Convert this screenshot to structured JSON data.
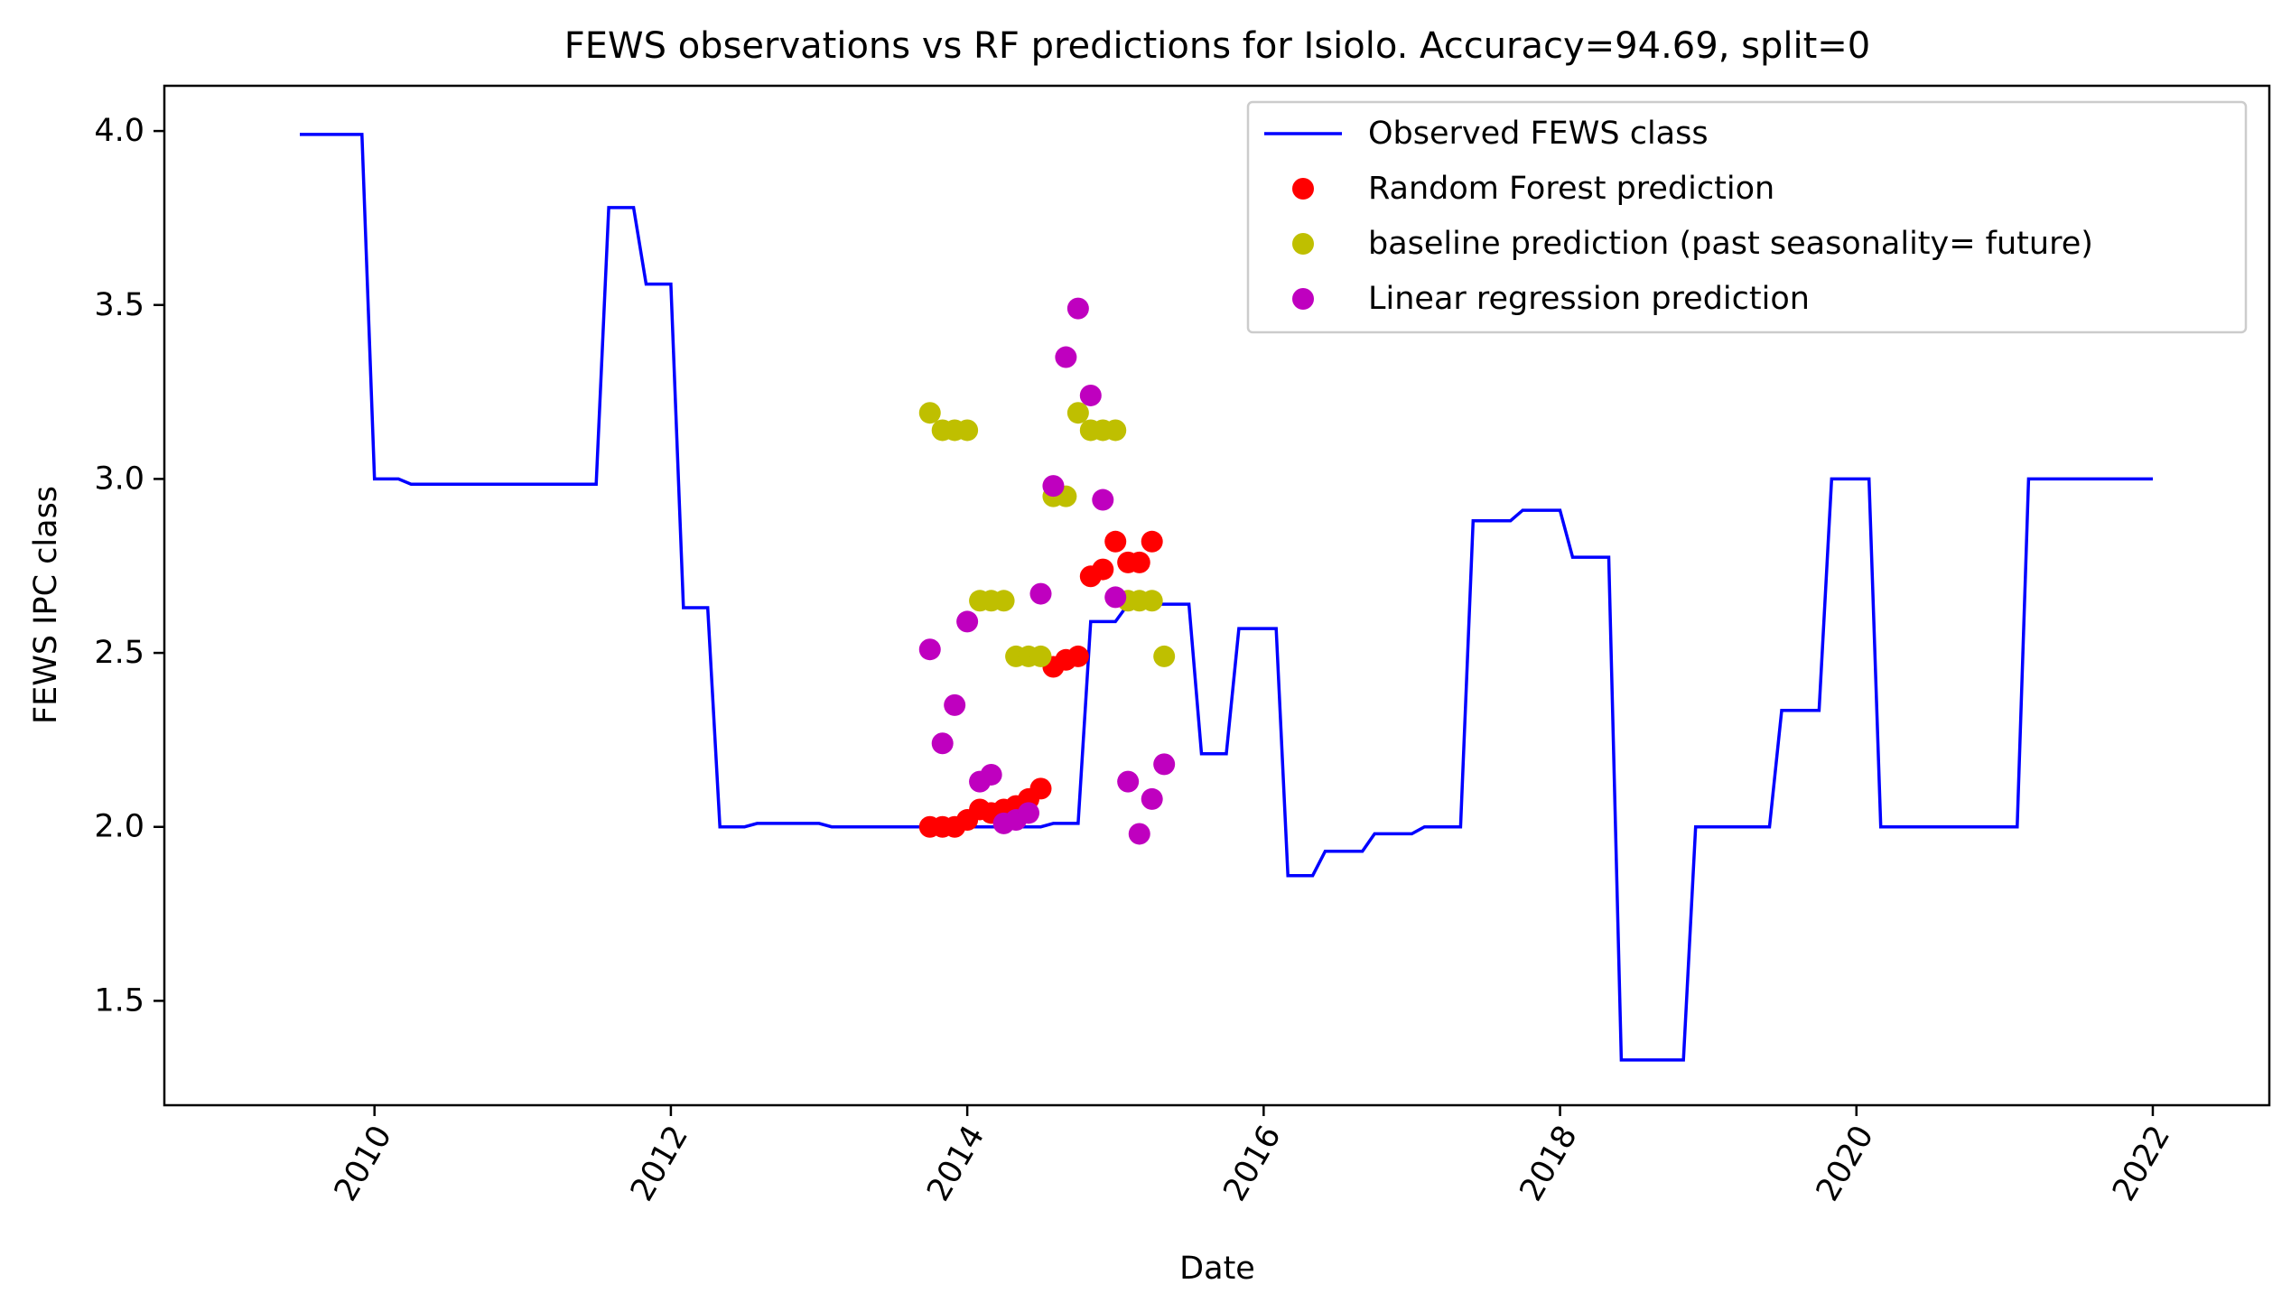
{
  "chart_data": {
    "type": "line",
    "title": "FEWS observations vs RF predictions for Isiolo. Accuracy=94.69, split=0",
    "xlabel": "Date",
    "ylabel": "FEWS IPC class",
    "xlim": [
      "2008-08-01",
      "2022-10-15"
    ],
    "ylim": [
      1.2,
      4.13
    ],
    "x_ticks": [
      "2010",
      "2012",
      "2014",
      "2016",
      "2018",
      "2020",
      "2022"
    ],
    "y_ticks": [
      "1.5",
      "2.0",
      "2.5",
      "3.0",
      "3.5",
      "4.0"
    ],
    "grid": false,
    "legend_position": "top-right",
    "series": [
      {
        "name": "Observed FEWS class",
        "kind": "line",
        "color": "#0000ff",
        "points": [
          [
            "2009-07-01",
            3.99
          ],
          [
            "2009-12-01",
            3.99
          ],
          [
            "2010-01-01",
            3.0
          ],
          [
            "2010-03-01",
            3.0
          ],
          [
            "2010-04-01",
            2.985
          ],
          [
            "2011-07-01",
            2.985
          ],
          [
            "2011-08-01",
            3.78
          ],
          [
            "2011-10-01",
            3.78
          ],
          [
            "2011-11-01",
            3.56
          ],
          [
            "2012-01-01",
            3.56
          ],
          [
            "2012-02-01",
            2.63
          ],
          [
            "2012-04-01",
            2.63
          ],
          [
            "2012-05-01",
            2.0
          ],
          [
            "2012-07-01",
            2.0
          ],
          [
            "2012-08-01",
            2.01
          ],
          [
            "2013-01-01",
            2.01
          ],
          [
            "2013-02-01",
            2.0
          ],
          [
            "2014-07-01",
            2.0
          ],
          [
            "2014-08-01",
            2.01
          ],
          [
            "2014-10-01",
            2.01
          ],
          [
            "2014-11-01",
            2.59
          ],
          [
            "2015-01-01",
            2.59
          ],
          [
            "2015-02-01",
            2.64
          ],
          [
            "2015-07-01",
            2.64
          ],
          [
            "2015-08-01",
            2.21
          ],
          [
            "2015-10-01",
            2.21
          ],
          [
            "2015-11-01",
            2.57
          ],
          [
            "2016-02-01",
            2.57
          ],
          [
            "2016-03-01",
            1.86
          ],
          [
            "2016-05-01",
            1.86
          ],
          [
            "2016-06-01",
            1.93
          ],
          [
            "2016-09-01",
            1.93
          ],
          [
            "2016-10-01",
            1.98
          ],
          [
            "2017-01-01",
            1.98
          ],
          [
            "2017-02-01",
            2.0
          ],
          [
            "2017-05-01",
            2.0
          ],
          [
            "2017-06-01",
            2.88
          ],
          [
            "2017-09-01",
            2.88
          ],
          [
            "2017-10-01",
            2.91
          ],
          [
            "2018-01-01",
            2.91
          ],
          [
            "2018-02-01",
            2.775
          ],
          [
            "2018-05-01",
            2.775
          ],
          [
            "2018-06-01",
            1.33
          ],
          [
            "2018-11-01",
            1.33
          ],
          [
            "2018-12-01",
            2.0
          ],
          [
            "2019-06-01",
            2.0
          ],
          [
            "2019-07-01",
            2.335
          ],
          [
            "2019-10-01",
            2.335
          ],
          [
            "2019-11-01",
            3.0
          ],
          [
            "2020-02-01",
            3.0
          ],
          [
            "2020-03-01",
            2.0
          ],
          [
            "2021-02-01",
            2.0
          ],
          [
            "2021-03-01",
            3.0
          ],
          [
            "2022-01-01",
            3.0
          ]
        ]
      },
      {
        "name": "Random Forest prediction",
        "kind": "scatter",
        "color": "#ff0000",
        "points": [
          [
            "2013-10-01",
            2.0
          ],
          [
            "2013-11-01",
            2.0
          ],
          [
            "2013-12-01",
            2.0
          ],
          [
            "2014-01-01",
            2.02
          ],
          [
            "2014-02-01",
            2.05
          ],
          [
            "2014-03-01",
            2.04
          ],
          [
            "2014-04-01",
            2.05
          ],
          [
            "2014-05-01",
            2.06
          ],
          [
            "2014-06-01",
            2.08
          ],
          [
            "2014-07-01",
            2.11
          ],
          [
            "2014-08-01",
            2.46
          ],
          [
            "2014-09-01",
            2.48
          ],
          [
            "2014-10-01",
            2.49
          ],
          [
            "2014-11-01",
            2.72
          ],
          [
            "2014-12-01",
            2.74
          ],
          [
            "2015-01-01",
            2.82
          ],
          [
            "2015-02-01",
            2.76
          ],
          [
            "2015-03-01",
            2.76
          ],
          [
            "2015-04-01",
            2.82
          ]
        ]
      },
      {
        "name": "baseline prediction (past seasonality= future)",
        "kind": "scatter",
        "color": "#bfbf00",
        "points": [
          [
            "2013-10-01",
            3.19
          ],
          [
            "2013-11-01",
            3.14
          ],
          [
            "2013-12-01",
            3.14
          ],
          [
            "2014-01-01",
            3.14
          ],
          [
            "2014-02-01",
            2.65
          ],
          [
            "2014-03-01",
            2.65
          ],
          [
            "2014-04-01",
            2.65
          ],
          [
            "2014-05-01",
            2.49
          ],
          [
            "2014-06-01",
            2.49
          ],
          [
            "2014-07-01",
            2.49
          ],
          [
            "2014-08-01",
            2.95
          ],
          [
            "2014-09-01",
            2.95
          ],
          [
            "2014-10-01",
            3.19
          ],
          [
            "2014-11-01",
            3.14
          ],
          [
            "2014-12-01",
            3.14
          ],
          [
            "2015-01-01",
            3.14
          ],
          [
            "2015-02-01",
            2.65
          ],
          [
            "2015-03-01",
            2.65
          ],
          [
            "2015-04-01",
            2.65
          ],
          [
            "2015-05-01",
            2.49
          ]
        ]
      },
      {
        "name": "Linear regression prediction",
        "kind": "scatter",
        "color": "#bf00bf",
        "points": [
          [
            "2013-10-01",
            2.51
          ],
          [
            "2013-11-01",
            2.24
          ],
          [
            "2013-12-01",
            2.35
          ],
          [
            "2014-01-01",
            2.59
          ],
          [
            "2014-02-01",
            2.13
          ],
          [
            "2014-03-01",
            2.15
          ],
          [
            "2014-04-01",
            2.01
          ],
          [
            "2014-05-01",
            2.02
          ],
          [
            "2014-06-01",
            2.04
          ],
          [
            "2014-07-01",
            2.67
          ],
          [
            "2014-08-01",
            2.98
          ],
          [
            "2014-09-01",
            3.35
          ],
          [
            "2014-10-01",
            3.49
          ],
          [
            "2014-11-01",
            3.24
          ],
          [
            "2014-12-01",
            2.94
          ],
          [
            "2015-01-01",
            2.66
          ],
          [
            "2015-02-01",
            2.13
          ],
          [
            "2015-03-01",
            1.98
          ],
          [
            "2015-04-01",
            2.08
          ],
          [
            "2015-05-01",
            2.18
          ]
        ]
      }
    ]
  }
}
